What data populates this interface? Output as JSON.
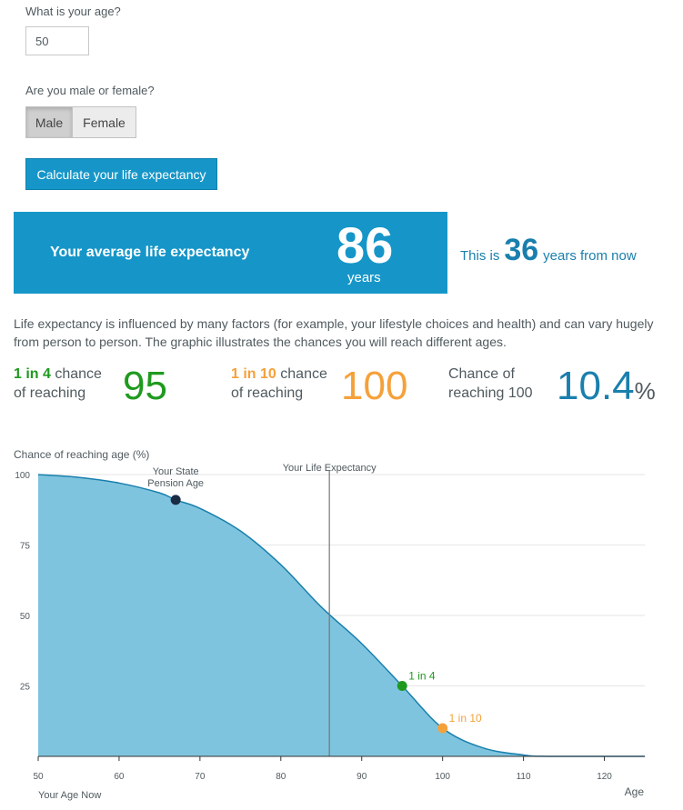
{
  "form": {
    "age_question": "What is your age?",
    "age_value": "50",
    "sex_question": "Are you male or female?",
    "male_label": "Male",
    "female_label": "Female",
    "calculate_label": "Calculate your life expectancy"
  },
  "result": {
    "label": "Your average life expectancy",
    "value": "86",
    "unit": "years",
    "from_now_prefix": "This is",
    "from_now_value": "36",
    "from_now_suffix": "years from now"
  },
  "description": "Life expectancy is influenced by many factors (for example, your lifestyle choices and health) and can vary hugely from person to person. The graphic illustrates the chances you will reach different ages.",
  "stats": [
    {
      "odds": "1 in 4",
      "text1": "chance",
      "text2": "of reaching",
      "value": "95",
      "color": "#1f9a1f"
    },
    {
      "odds": "1 in 10",
      "text1": "chance",
      "text2": "of reaching",
      "value": "100",
      "color": "#f5a13a"
    },
    {
      "text1": "Chance of",
      "text2": "reaching 100",
      "value": "10.4",
      "unit": "%",
      "color": "#1a7fad"
    }
  ],
  "chart_data": {
    "type": "area",
    "ylabel": "Chance of reaching age (%)",
    "xlabel": "Age",
    "xlim": [
      50,
      125
    ],
    "ylim": [
      0,
      100
    ],
    "x_ticks": [
      50,
      60,
      70,
      80,
      90,
      100,
      110,
      120
    ],
    "y_ticks": [
      100,
      75,
      50,
      25
    ],
    "fill_color": "#7fc4de",
    "line_color": "#1a7fad",
    "series": [
      {
        "x": [
          50,
          55,
          60,
          65,
          67,
          70,
          75,
          80,
          85,
          86,
          90,
          95,
          100,
          105,
          110,
          113,
          125
        ],
        "values": [
          100,
          99,
          97,
          93.5,
          91,
          88,
          80,
          68,
          53,
          57,
          40,
          25,
          10,
          3,
          0.5,
          0,
          0
        ]
      }
    ],
    "annotations": [
      {
        "label": "Your State Pension Age",
        "x": 67,
        "y": 91,
        "color": "#1a2b44"
      },
      {
        "label": "1 in 4",
        "x": 95,
        "y": 25,
        "color": "#1f9a1f"
      },
      {
        "label": "1 in 10",
        "x": 100,
        "y": 10,
        "color": "#f5a13a"
      }
    ],
    "vline": {
      "label": "Your Life Expectancy",
      "x": 86
    },
    "start_label": "Your Age Now"
  }
}
